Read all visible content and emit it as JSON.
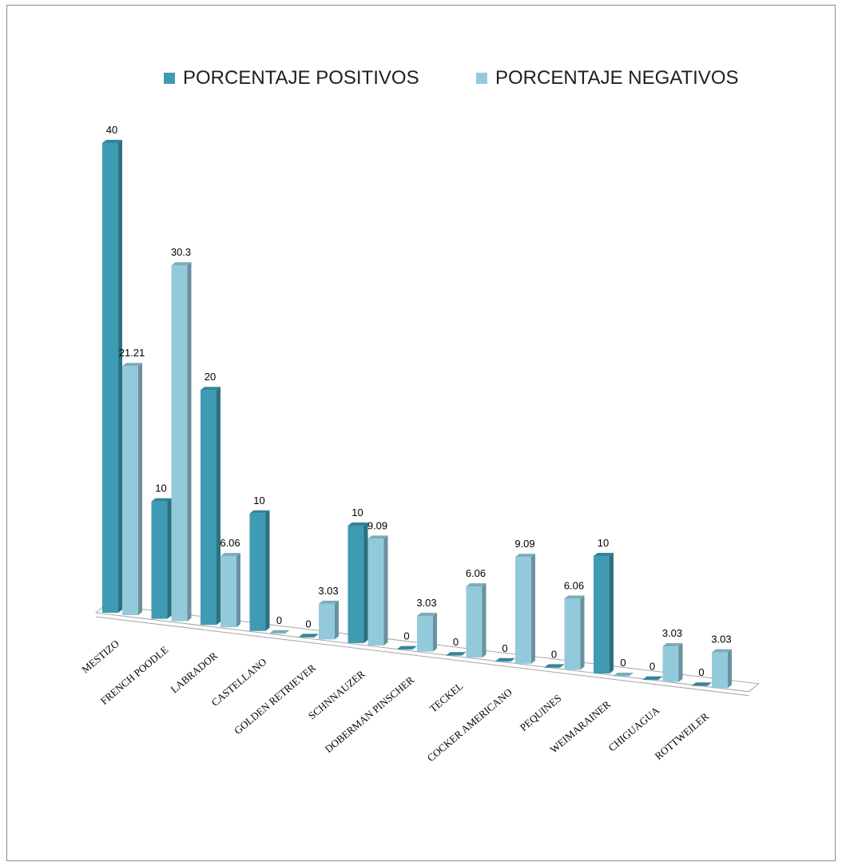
{
  "chart_data": {
    "type": "bar",
    "style": "3d-clustered-column",
    "categories": [
      "MESTIZO",
      "FRENCH POODLE",
      "LABRADOR",
      "CASTELLANO",
      "GOLDEN RETRIEVER",
      "SCHNNAUZER",
      "DOBERMAN PINSCHER",
      "TECKEL",
      "COCKER AMERICANO",
      "PEQUINES",
      "WEIMARAINER",
      "CHIGUAGUA",
      "ROTTWEILER"
    ],
    "series": [
      {
        "name": "PORCENTAJE POSITIVOS",
        "color": "#3f9bb3",
        "values": [
          40,
          10,
          20,
          10,
          0,
          10,
          0,
          0,
          0,
          0,
          10,
          0,
          0
        ],
        "labels": [
          "40",
          "10",
          "20",
          "10",
          "0",
          "10",
          "0",
          "0",
          "0",
          "0",
          "10",
          "0",
          "0"
        ]
      },
      {
        "name": "PORCENTAJE NEGATIVOS",
        "color": "#93cadb",
        "values": [
          21.21,
          30.3,
          6.06,
          0,
          3.03,
          9.09,
          3.03,
          6.06,
          9.09,
          6.06,
          0,
          3.03,
          3.03
        ],
        "labels": [
          "21.21",
          "30.3",
          "6.06",
          "0",
          "3.03",
          "9.09",
          "3.03",
          "6.06",
          "9.09",
          "6.06",
          "0",
          "3.03",
          "3.03"
        ]
      }
    ],
    "legend_position": "top",
    "grid": false
  }
}
